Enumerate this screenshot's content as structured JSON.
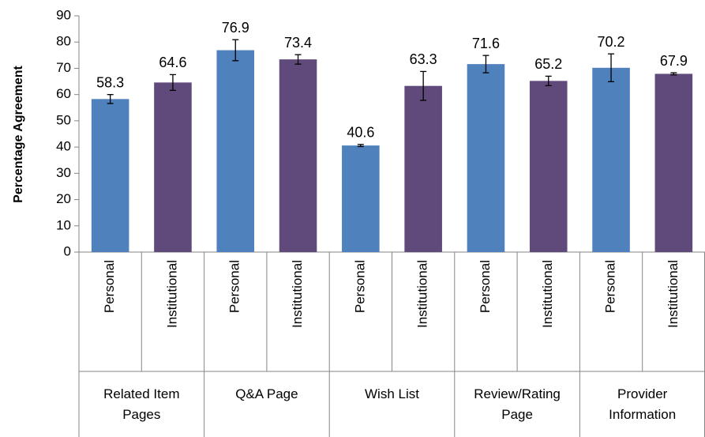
{
  "chart_data": {
    "type": "bar",
    "y_label": "Percentage Agreement",
    "categories": [
      "Personal",
      "Institutional",
      "Personal",
      "Institutional",
      "Personal",
      "Institutional",
      "Personal",
      "Institutional",
      "Personal",
      "Institutional"
    ],
    "groups": [
      "Related Item Pages",
      "Q&A Page",
      "Wish List",
      "Review/Rating Page",
      "Provider Information"
    ],
    "values": [
      58.3,
      64.6,
      76.9,
      73.4,
      40.6,
      63.3,
      71.6,
      65.2,
      70.2,
      67.9
    ],
    "errors": [
      1.7,
      3,
      4,
      1.8,
      0.4,
      5.5,
      3.3,
      1.8,
      5.3,
      0.4
    ],
    "colors": [
      "#4f81bd",
      "#604a7b",
      "#4f81bd",
      "#604a7b",
      "#4f81bd",
      "#604a7b",
      "#4f81bd",
      "#604a7b",
      "#4f81bd",
      "#604a7b"
    ],
    "ylim": [
      0,
      90
    ],
    "yticks": [
      0,
      10,
      20,
      30,
      40,
      50,
      60,
      70,
      80,
      90
    ],
    "grid": false
  }
}
